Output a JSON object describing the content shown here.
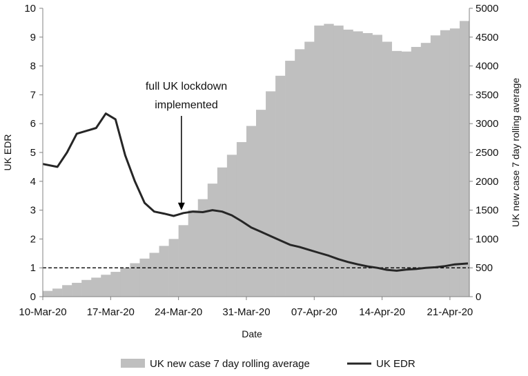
{
  "chart_data": {
    "type": "bar+line",
    "title": "",
    "xlabel": "Date",
    "ylabel_left": "UK EDR",
    "ylabel_right": "UK new case 7 day rolling average",
    "ylim_left": [
      0,
      10
    ],
    "ylim_right": [
      0,
      5000
    ],
    "yticks_left": [
      "0",
      "1",
      "2",
      "3",
      "4",
      "5",
      "6",
      "7",
      "8",
      "9",
      "10"
    ],
    "yticks_right": [
      "0",
      "500",
      "1000",
      "1500",
      "2000",
      "2500",
      "3000",
      "3500",
      "4000",
      "4500",
      "5000"
    ],
    "x_tick_labels": [
      "10-Mar-20",
      "17-Mar-20",
      "24-Mar-20",
      "31-Mar-20",
      "07-Apr-20",
      "14-Apr-20",
      "21-Apr-20"
    ],
    "x_tick_day_index": [
      0,
      7,
      14,
      21,
      28,
      35,
      42
    ],
    "dates": [
      "10-Mar-20",
      "11-Mar-20",
      "12-Mar-20",
      "13-Mar-20",
      "14-Mar-20",
      "15-Mar-20",
      "16-Mar-20",
      "17-Mar-20",
      "18-Mar-20",
      "19-Mar-20",
      "20-Mar-20",
      "21-Mar-20",
      "22-Mar-20",
      "23-Mar-20",
      "24-Mar-20",
      "25-Mar-20",
      "26-Mar-20",
      "27-Mar-20",
      "28-Mar-20",
      "29-Mar-20",
      "30-Mar-20",
      "31-Mar-20",
      "01-Apr-20",
      "02-Apr-20",
      "03-Apr-20",
      "04-Apr-20",
      "05-Apr-20",
      "06-Apr-20",
      "07-Apr-20",
      "08-Apr-20",
      "09-Apr-20",
      "10-Apr-20",
      "11-Apr-20",
      "12-Apr-20",
      "13-Apr-20",
      "14-Apr-20",
      "15-Apr-20",
      "16-Apr-20",
      "17-Apr-20",
      "18-Apr-20",
      "19-Apr-20",
      "20-Apr-20",
      "21-Apr-20",
      "22-Apr-20"
    ],
    "series": [
      {
        "name": "UK new case 7 day rolling average",
        "type": "bar",
        "axis": "right",
        "color": "#bfbfbf",
        "values": [
          100,
          140,
          200,
          240,
          290,
          330,
          380,
          430,
          500,
          580,
          660,
          760,
          880,
          1000,
          1240,
          1500,
          1690,
          1960,
          2240,
          2460,
          2680,
          2960,
          3240,
          3560,
          3830,
          4090,
          4290,
          4420,
          4700,
          4730,
          4700,
          4630,
          4600,
          4570,
          4540,
          4420,
          4260,
          4250,
          4330,
          4400,
          4530,
          4620,
          4650,
          4780
        ]
      },
      {
        "name": "UK EDR",
        "type": "line",
        "axis": "left",
        "color": "#262626",
        "values": [
          4.6,
          4.5,
          5.0,
          5.65,
          5.75,
          5.85,
          6.35,
          6.15,
          4.9,
          4.0,
          3.25,
          2.95,
          2.88,
          2.8,
          2.9,
          2.95,
          2.93,
          3.0,
          2.95,
          2.82,
          2.62,
          2.4,
          2.25,
          2.1,
          1.95,
          1.8,
          1.72,
          1.62,
          1.52,
          1.42,
          1.3,
          1.2,
          1.12,
          1.05,
          1.0,
          0.93,
          0.9,
          0.94,
          0.96,
          1.0,
          1.02,
          1.06,
          1.12,
          1.15
        ]
      }
    ],
    "reference_line": {
      "axis": "left",
      "value": 1,
      "style": "dashed"
    },
    "annotation": {
      "lines": [
        "full UK lockdown",
        "implemented"
      ],
      "date_index": 14.3
    },
    "legend": {
      "placement": "bottom",
      "items": [
        {
          "label": "UK new case 7 day rolling average",
          "kind": "bar",
          "color": "#bfbfbf"
        },
        {
          "label": "UK EDR",
          "kind": "line",
          "color": "#262626"
        }
      ]
    },
    "grid": false
  }
}
